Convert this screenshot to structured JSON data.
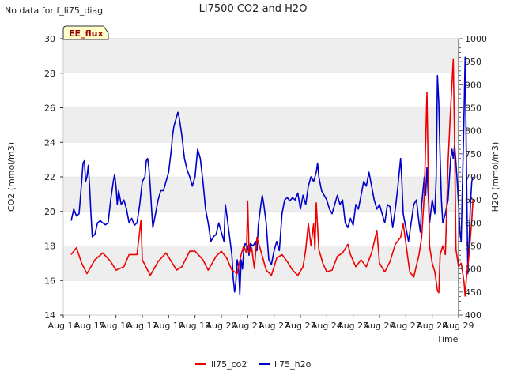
{
  "chart_data": {
    "type": "line",
    "title": "LI7500 CO2 and H2O",
    "corner_note": "No data for f_li75_diag",
    "badge": "EE_flux",
    "xlabel": "Time",
    "ylabel_left": "CO2 (mmol/m3)",
    "ylabel_right": "H2O (mmol/m3)",
    "x_ticks": [
      "Aug 14",
      "Aug 15",
      "Aug 16",
      "Aug 17",
      "Aug 18",
      "Aug 19",
      "Aug 20",
      "Aug 21",
      "Aug 22",
      "Aug 23",
      "Aug 24",
      "Aug 25",
      "Aug 26",
      "Aug 27",
      "Aug 28",
      "Aug 29"
    ],
    "xlim_days": [
      14,
      29
    ],
    "ylim_left": [
      14,
      30
    ],
    "y_ticks_left": [
      14,
      16,
      18,
      20,
      22,
      24,
      26,
      28,
      30
    ],
    "ylim_right": [
      400,
      1000
    ],
    "y_ticks_right": [
      400,
      450,
      500,
      550,
      600,
      650,
      700,
      750,
      800,
      850,
      900,
      950,
      1000
    ],
    "grid": true,
    "legend_position": "bottom-center",
    "colors": {
      "li75_co2": "#ee0000",
      "li75_h2o": "#0000cc",
      "band": "#eeeeee",
      "badge_bg": "#ffffcc",
      "badge_text": "#990000"
    },
    "series": [
      {
        "name": "li75_co2",
        "axis": "left",
        "points": [
          [
            14.3,
            17.5
          ],
          [
            14.5,
            17.9
          ],
          [
            14.7,
            17.0
          ],
          [
            14.9,
            16.4
          ],
          [
            15.2,
            17.2
          ],
          [
            15.5,
            17.6
          ],
          [
            15.8,
            17.1
          ],
          [
            16.0,
            16.6
          ],
          [
            16.3,
            16.8
          ],
          [
            16.5,
            17.5
          ],
          [
            16.8,
            17.5
          ],
          [
            16.95,
            19.5
          ],
          [
            17.0,
            17.2
          ],
          [
            17.3,
            16.3
          ],
          [
            17.6,
            17.1
          ],
          [
            17.9,
            17.6
          ],
          [
            18.1,
            17.1
          ],
          [
            18.3,
            16.6
          ],
          [
            18.5,
            16.8
          ],
          [
            18.8,
            17.7
          ],
          [
            19.0,
            17.7
          ],
          [
            19.3,
            17.2
          ],
          [
            19.5,
            16.6
          ],
          [
            19.8,
            17.4
          ],
          [
            20.0,
            17.7
          ],
          [
            20.2,
            17.3
          ],
          [
            20.4,
            16.6
          ],
          [
            20.6,
            16.4
          ],
          [
            20.75,
            17.5
          ],
          [
            20.85,
            18.0
          ],
          [
            20.95,
            17.6
          ],
          [
            21.0,
            20.6
          ],
          [
            21.05,
            17.6
          ],
          [
            21.15,
            17.9
          ],
          [
            21.25,
            16.7
          ],
          [
            21.35,
            18.5
          ],
          [
            21.5,
            17.7
          ],
          [
            21.7,
            16.6
          ],
          [
            21.9,
            16.3
          ],
          [
            22.1,
            17.3
          ],
          [
            22.3,
            17.5
          ],
          [
            22.5,
            17.1
          ],
          [
            22.7,
            16.6
          ],
          [
            22.9,
            16.3
          ],
          [
            23.1,
            16.8
          ],
          [
            23.2,
            17.8
          ],
          [
            23.3,
            19.3
          ],
          [
            23.4,
            18.0
          ],
          [
            23.5,
            19.3
          ],
          [
            23.55,
            17.8
          ],
          [
            23.6,
            20.5
          ],
          [
            23.7,
            17.8
          ],
          [
            23.85,
            17.0
          ],
          [
            24.0,
            16.5
          ],
          [
            24.2,
            16.6
          ],
          [
            24.4,
            17.4
          ],
          [
            24.6,
            17.6
          ],
          [
            24.8,
            18.1
          ],
          [
            24.9,
            17.5
          ],
          [
            25.1,
            16.8
          ],
          [
            25.3,
            17.2
          ],
          [
            25.5,
            16.8
          ],
          [
            25.7,
            17.6
          ],
          [
            25.9,
            18.9
          ],
          [
            26.0,
            17.0
          ],
          [
            26.2,
            16.5
          ],
          [
            26.4,
            17.1
          ],
          [
            26.6,
            18.1
          ],
          [
            26.8,
            18.5
          ],
          [
            26.9,
            19.3
          ],
          [
            27.05,
            17.6
          ],
          [
            27.15,
            16.5
          ],
          [
            27.3,
            16.2
          ],
          [
            27.5,
            17.5
          ],
          [
            27.6,
            18.5
          ],
          [
            27.7,
            21.0
          ],
          [
            27.8,
            26.9
          ],
          [
            27.85,
            22.0
          ],
          [
            27.9,
            18.0
          ],
          [
            28.0,
            17.0
          ],
          [
            28.1,
            16.5
          ],
          [
            28.2,
            15.4
          ],
          [
            28.25,
            15.3
          ],
          [
            28.3,
            17.5
          ],
          [
            28.4,
            18.0
          ],
          [
            28.5,
            17.5
          ],
          [
            28.6,
            22.8
          ],
          [
            28.7,
            26.0
          ],
          [
            28.8,
            28.8
          ],
          [
            28.85,
            24.0
          ],
          [
            28.9,
            17.8
          ],
          [
            29.0,
            16.8
          ],
          [
            29.1,
            17.0
          ],
          [
            29.2,
            16.0
          ],
          [
            29.25,
            15.1
          ],
          [
            29.3,
            16.2
          ],
          [
            29.4,
            17.5
          ],
          [
            29.5,
            19.5
          ],
          [
            29.55,
            20.7
          ]
        ]
      },
      {
        "name": "li75_h2o",
        "axis": "right",
        "points": [
          [
            14.3,
            605
          ],
          [
            14.4,
            630
          ],
          [
            14.5,
            615
          ],
          [
            14.6,
            620
          ],
          [
            14.7,
            690
          ],
          [
            14.75,
            730
          ],
          [
            14.8,
            735
          ],
          [
            14.85,
            690
          ],
          [
            14.9,
            700
          ],
          [
            14.95,
            725
          ],
          [
            15.0,
            680
          ],
          [
            15.05,
            620
          ],
          [
            15.1,
            570
          ],
          [
            15.2,
            575
          ],
          [
            15.3,
            600
          ],
          [
            15.4,
            605
          ],
          [
            15.5,
            600
          ],
          [
            15.6,
            596
          ],
          [
            15.7,
            600
          ],
          [
            15.8,
            650
          ],
          [
            15.9,
            690
          ],
          [
            15.95,
            705
          ],
          [
            16.0,
            680
          ],
          [
            16.05,
            640
          ],
          [
            16.1,
            670
          ],
          [
            16.2,
            640
          ],
          [
            16.3,
            650
          ],
          [
            16.4,
            630
          ],
          [
            16.5,
            600
          ],
          [
            16.6,
            610
          ],
          [
            16.7,
            595
          ],
          [
            16.8,
            600
          ],
          [
            16.9,
            640
          ],
          [
            17.0,
            690
          ],
          [
            17.1,
            700
          ],
          [
            17.15,
            735
          ],
          [
            17.2,
            740
          ],
          [
            17.25,
            720
          ],
          [
            17.3,
            680
          ],
          [
            17.35,
            630
          ],
          [
            17.4,
            590
          ],
          [
            17.5,
            620
          ],
          [
            17.6,
            650
          ],
          [
            17.7,
            670
          ],
          [
            17.8,
            670
          ],
          [
            17.9,
            690
          ],
          [
            18.0,
            710
          ],
          [
            18.1,
            760
          ],
          [
            18.15,
            790
          ],
          [
            18.2,
            810
          ],
          [
            18.3,
            830
          ],
          [
            18.35,
            840
          ],
          [
            18.4,
            828
          ],
          [
            18.5,
            790
          ],
          [
            18.6,
            740
          ],
          [
            18.7,
            715
          ],
          [
            18.8,
            700
          ],
          [
            18.9,
            680
          ],
          [
            19.0,
            700
          ],
          [
            19.1,
            760
          ],
          [
            19.2,
            740
          ],
          [
            19.3,
            690
          ],
          [
            19.4,
            630
          ],
          [
            19.5,
            600
          ],
          [
            19.6,
            560
          ],
          [
            19.7,
            570
          ],
          [
            19.8,
            575
          ],
          [
            19.9,
            600
          ],
          [
            20.0,
            580
          ],
          [
            20.1,
            560
          ],
          [
            20.15,
            640
          ],
          [
            20.2,
            620
          ],
          [
            20.3,
            575
          ],
          [
            20.4,
            530
          ],
          [
            20.45,
            480
          ],
          [
            20.5,
            450
          ],
          [
            20.55,
            470
          ],
          [
            20.6,
            520
          ],
          [
            20.65,
            505
          ],
          [
            20.7,
            445
          ],
          [
            20.75,
            520
          ],
          [
            20.8,
            500
          ],
          [
            20.85,
            540
          ],
          [
            20.9,
            555
          ],
          [
            21.0,
            550
          ],
          [
            21.05,
            530
          ],
          [
            21.1,
            555
          ],
          [
            21.2,
            550
          ],
          [
            21.3,
            560
          ],
          [
            21.35,
            540
          ],
          [
            21.4,
            595
          ],
          [
            21.5,
            640
          ],
          [
            21.55,
            660
          ],
          [
            21.6,
            645
          ],
          [
            21.7,
            600
          ],
          [
            21.75,
            560
          ],
          [
            21.8,
            520
          ],
          [
            21.9,
            510
          ],
          [
            22.0,
            540
          ],
          [
            22.1,
            560
          ],
          [
            22.2,
            540
          ],
          [
            22.3,
            620
          ],
          [
            22.4,
            650
          ],
          [
            22.5,
            655
          ],
          [
            22.6,
            648
          ],
          [
            22.7,
            655
          ],
          [
            22.8,
            650
          ],
          [
            22.9,
            665
          ],
          [
            23.0,
            630
          ],
          [
            23.1,
            660
          ],
          [
            23.2,
            640
          ],
          [
            23.3,
            680
          ],
          [
            23.4,
            700
          ],
          [
            23.5,
            690
          ],
          [
            23.6,
            710
          ],
          [
            23.65,
            730
          ],
          [
            23.7,
            700
          ],
          [
            23.8,
            670
          ],
          [
            23.9,
            660
          ],
          [
            24.0,
            650
          ],
          [
            24.1,
            630
          ],
          [
            24.2,
            620
          ],
          [
            24.3,
            640
          ],
          [
            24.4,
            660
          ],
          [
            24.5,
            640
          ],
          [
            24.6,
            650
          ],
          [
            24.7,
            600
          ],
          [
            24.8,
            590
          ],
          [
            24.9,
            610
          ],
          [
            25.0,
            595
          ],
          [
            25.1,
            640
          ],
          [
            25.2,
            630
          ],
          [
            25.3,
            660
          ],
          [
            25.4,
            690
          ],
          [
            25.5,
            680
          ],
          [
            25.6,
            710
          ],
          [
            25.7,
            680
          ],
          [
            25.8,
            650
          ],
          [
            25.9,
            630
          ],
          [
            26.0,
            640
          ],
          [
            26.1,
            620
          ],
          [
            26.2,
            600
          ],
          [
            26.3,
            640
          ],
          [
            26.4,
            635
          ],
          [
            26.5,
            590
          ],
          [
            26.6,
            630
          ],
          [
            26.7,
            680
          ],
          [
            26.75,
            710
          ],
          [
            26.8,
            740
          ],
          [
            26.85,
            690
          ],
          [
            26.9,
            620
          ],
          [
            27.0,
            590
          ],
          [
            27.1,
            560
          ],
          [
            27.2,
            600
          ],
          [
            27.3,
            640
          ],
          [
            27.4,
            650
          ],
          [
            27.5,
            600
          ],
          [
            27.55,
            580
          ],
          [
            27.6,
            640
          ],
          [
            27.7,
            700
          ],
          [
            27.75,
            660
          ],
          [
            27.8,
            720
          ],
          [
            27.9,
            600
          ],
          [
            28.0,
            650
          ],
          [
            28.1,
            620
          ],
          [
            28.15,
            700
          ],
          [
            28.2,
            920
          ],
          [
            28.25,
            860
          ],
          [
            28.3,
            740
          ],
          [
            28.35,
            650
          ],
          [
            28.4,
            600
          ],
          [
            28.5,
            620
          ],
          [
            28.6,
            650
          ],
          [
            28.7,
            740
          ],
          [
            28.75,
            760
          ],
          [
            28.8,
            740
          ],
          [
            28.85,
            770
          ],
          [
            28.9,
            730
          ],
          [
            28.95,
            690
          ],
          [
            29.0,
            640
          ],
          [
            29.05,
            580
          ],
          [
            29.1,
            560
          ],
          [
            29.15,
            690
          ],
          [
            29.2,
            820
          ],
          [
            29.25,
            960
          ],
          [
            29.3,
            720
          ],
          [
            29.35,
            490
          ],
          [
            29.4,
            560
          ],
          [
            29.45,
            640
          ],
          [
            29.5,
            690
          ],
          [
            29.55,
            700
          ]
        ]
      }
    ]
  }
}
